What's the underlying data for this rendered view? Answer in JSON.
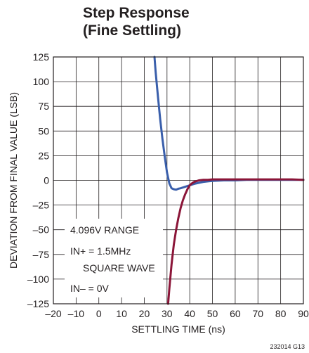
{
  "chart_data": {
    "type": "line",
    "title": "Step Response",
    "subtitle": "(Fine Settling)",
    "xlabel": "SETTLING TIME (ns)",
    "ylabel": "DEVIATION FROM FINAL VALUE (LSB)",
    "xlim": [
      -20,
      90
    ],
    "ylim": [
      -125,
      125
    ],
    "xticks": [
      -20,
      -10,
      0,
      10,
      20,
      30,
      40,
      50,
      60,
      70,
      80,
      90
    ],
    "yticks": [
      125,
      100,
      75,
      50,
      25,
      0,
      -25,
      -50,
      -75,
      -100,
      -125
    ],
    "grid": true,
    "legend": "none",
    "annotations": [
      "4.096V RANGE",
      "IN+ = 1.5MHz",
      "SQUARE WAVE",
      "IN– = 0V"
    ],
    "figure_id": "232014 G13",
    "series": [
      {
        "color": "#3a5fab",
        "x": [
          24.5,
          25,
          26,
          27,
          28,
          29,
          30,
          31,
          32,
          33,
          34,
          35,
          36,
          38,
          40,
          42,
          44,
          46,
          48,
          50,
          55,
          60,
          65,
          70,
          75,
          80,
          85,
          90
        ],
        "y": [
          125,
          110,
          85,
          62,
          42,
          24,
          8,
          -3,
          -8,
          -9,
          -9.5,
          -8.5,
          -8,
          -6.5,
          -5,
          -3.5,
          -2.5,
          -1.5,
          -1,
          -0.5,
          0,
          0,
          0.5,
          0.5,
          0.5,
          0.5,
          0.5,
          0.5
        ]
      },
      {
        "color": "#8b1538",
        "x": [
          30.5,
          31,
          32,
          33,
          34,
          35,
          36,
          37,
          38,
          39,
          40,
          41,
          42,
          44,
          46,
          48,
          50,
          55,
          60,
          65,
          70,
          75,
          80,
          85,
          90
        ],
        "y": [
          -125,
          -110,
          -85,
          -65,
          -50,
          -38,
          -28,
          -20,
          -14,
          -9,
          -5,
          -3,
          -1.5,
          0,
          0.5,
          0.5,
          1,
          1,
          1,
          1,
          1,
          1,
          1,
          1,
          0.5
        ]
      }
    ]
  }
}
